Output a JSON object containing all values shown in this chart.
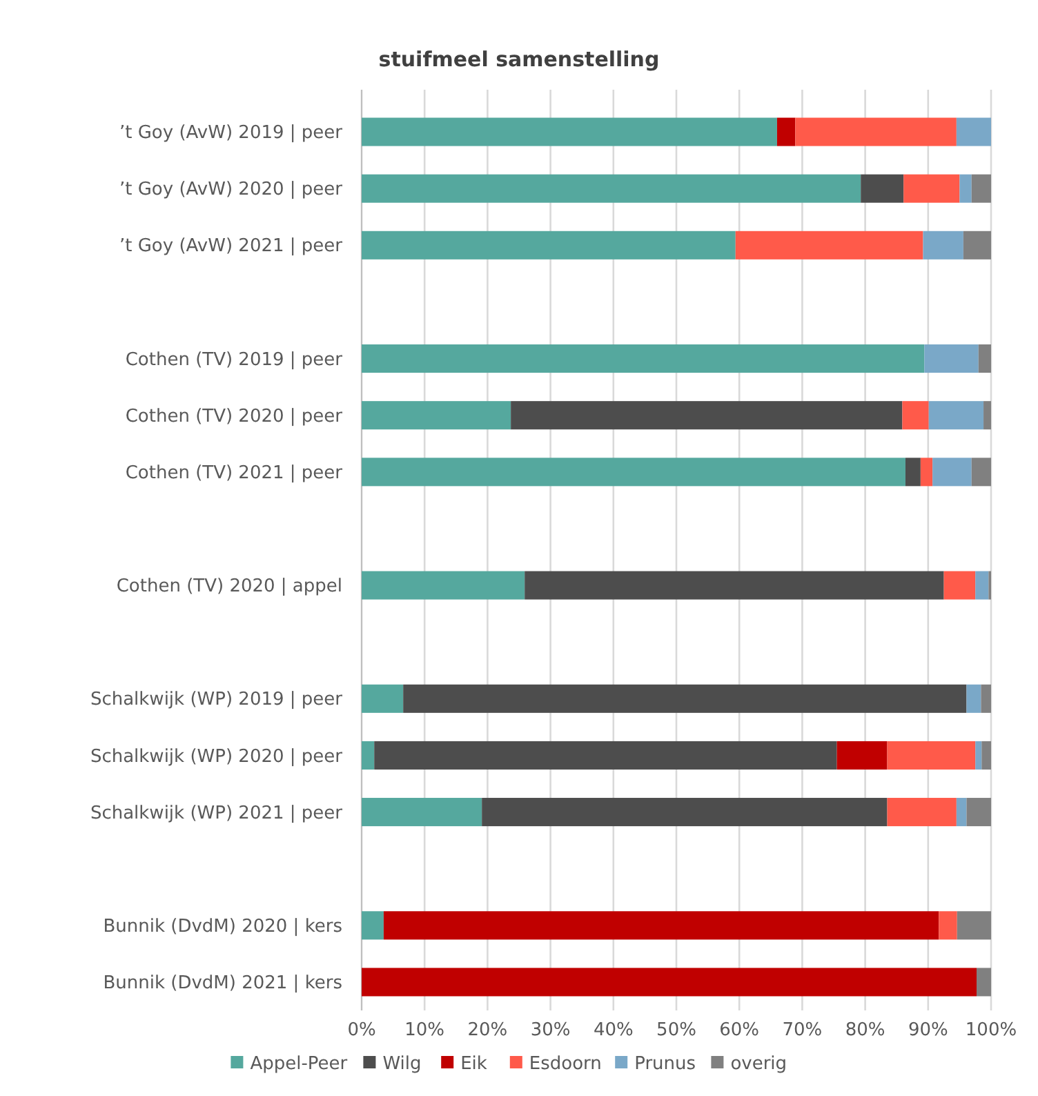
{
  "chart_data": {
    "type": "bar",
    "title": "stuifmeel samenstelling",
    "orientation": "horizontal",
    "stacked": true,
    "categories": [
      "’t Goy (AvW) 2019 | peer",
      "’t Goy (AvW) 2020 | peer",
      "’t Goy (AvW) 2021 | peer",
      null,
      "Cothen (TV) 2019 | peer",
      "Cothen (TV) 2020 | peer",
      "Cothen (TV) 2021 | peer",
      null,
      "Cothen (TV) 2020 | appel",
      null,
      "Schalkwijk (WP) 2019 | peer",
      "Schalkwijk (WP) 2020 | peer",
      "Schalkwijk (WP) 2021 | peer",
      null,
      "Bunnik (DvdM) 2020 | kers",
      "Bunnik (DvdM) 2021 | kers"
    ],
    "series": [
      {
        "name": "Appel-Peer",
        "color": "#55a89e",
        "values": [
          66.0,
          79.3,
          59.4,
          null,
          89.4,
          23.7,
          86.4,
          null,
          25.9,
          null,
          6.6,
          2.0,
          19.1,
          null,
          3.5,
          0
        ]
      },
      {
        "name": "Wilg",
        "color": "#4d4d4d",
        "values": [
          0,
          6.8,
          0,
          null,
          0,
          62.2,
          2.4,
          null,
          66.6,
          null,
          89.5,
          73.5,
          64.4,
          null,
          0,
          0
        ]
      },
      {
        "name": "Eik",
        "color": "#c00000",
        "values": [
          2.9,
          0,
          0,
          null,
          0,
          0,
          0,
          null,
          0,
          null,
          0,
          8.0,
          0,
          null,
          88.2,
          97.7
        ]
      },
      {
        "name": "Esdoorn",
        "color": "#ff5a4a",
        "values": [
          25.6,
          8.9,
          29.8,
          null,
          0,
          4.2,
          1.9,
          null,
          5.0,
          null,
          0,
          14.0,
          11.0,
          null,
          2.9,
          0
        ]
      },
      {
        "name": "Prunus",
        "color": "#7aa8c8",
        "values": [
          5.5,
          1.9,
          6.4,
          null,
          8.6,
          8.7,
          6.2,
          null,
          2.1,
          null,
          2.3,
          1.0,
          1.6,
          null,
          0,
          0
        ]
      },
      {
        "name": "overig",
        "color": "#808080",
        "values": [
          0,
          3.1,
          4.4,
          null,
          2.0,
          1.2,
          3.1,
          null,
          0.4,
          null,
          1.6,
          1.5,
          3.9,
          null,
          5.4,
          2.3
        ]
      }
    ],
    "xlim": [
      0,
      100
    ],
    "xticks": [
      {
        "value": 0,
        "label": "0%"
      },
      {
        "value": 10,
        "label": "10%"
      },
      {
        "value": 20,
        "label": "20%"
      },
      {
        "value": 30,
        "label": "30%"
      },
      {
        "value": 40,
        "label": "40%"
      },
      {
        "value": 50,
        "label": "50%"
      },
      {
        "value": 60,
        "label": "60%"
      },
      {
        "value": 70,
        "label": "70%"
      },
      {
        "value": 80,
        "label": "80%"
      },
      {
        "value": 90,
        "label": "90%"
      },
      {
        "value": 100,
        "label": "100%"
      }
    ],
    "grid": "x",
    "legend": "bottom"
  }
}
